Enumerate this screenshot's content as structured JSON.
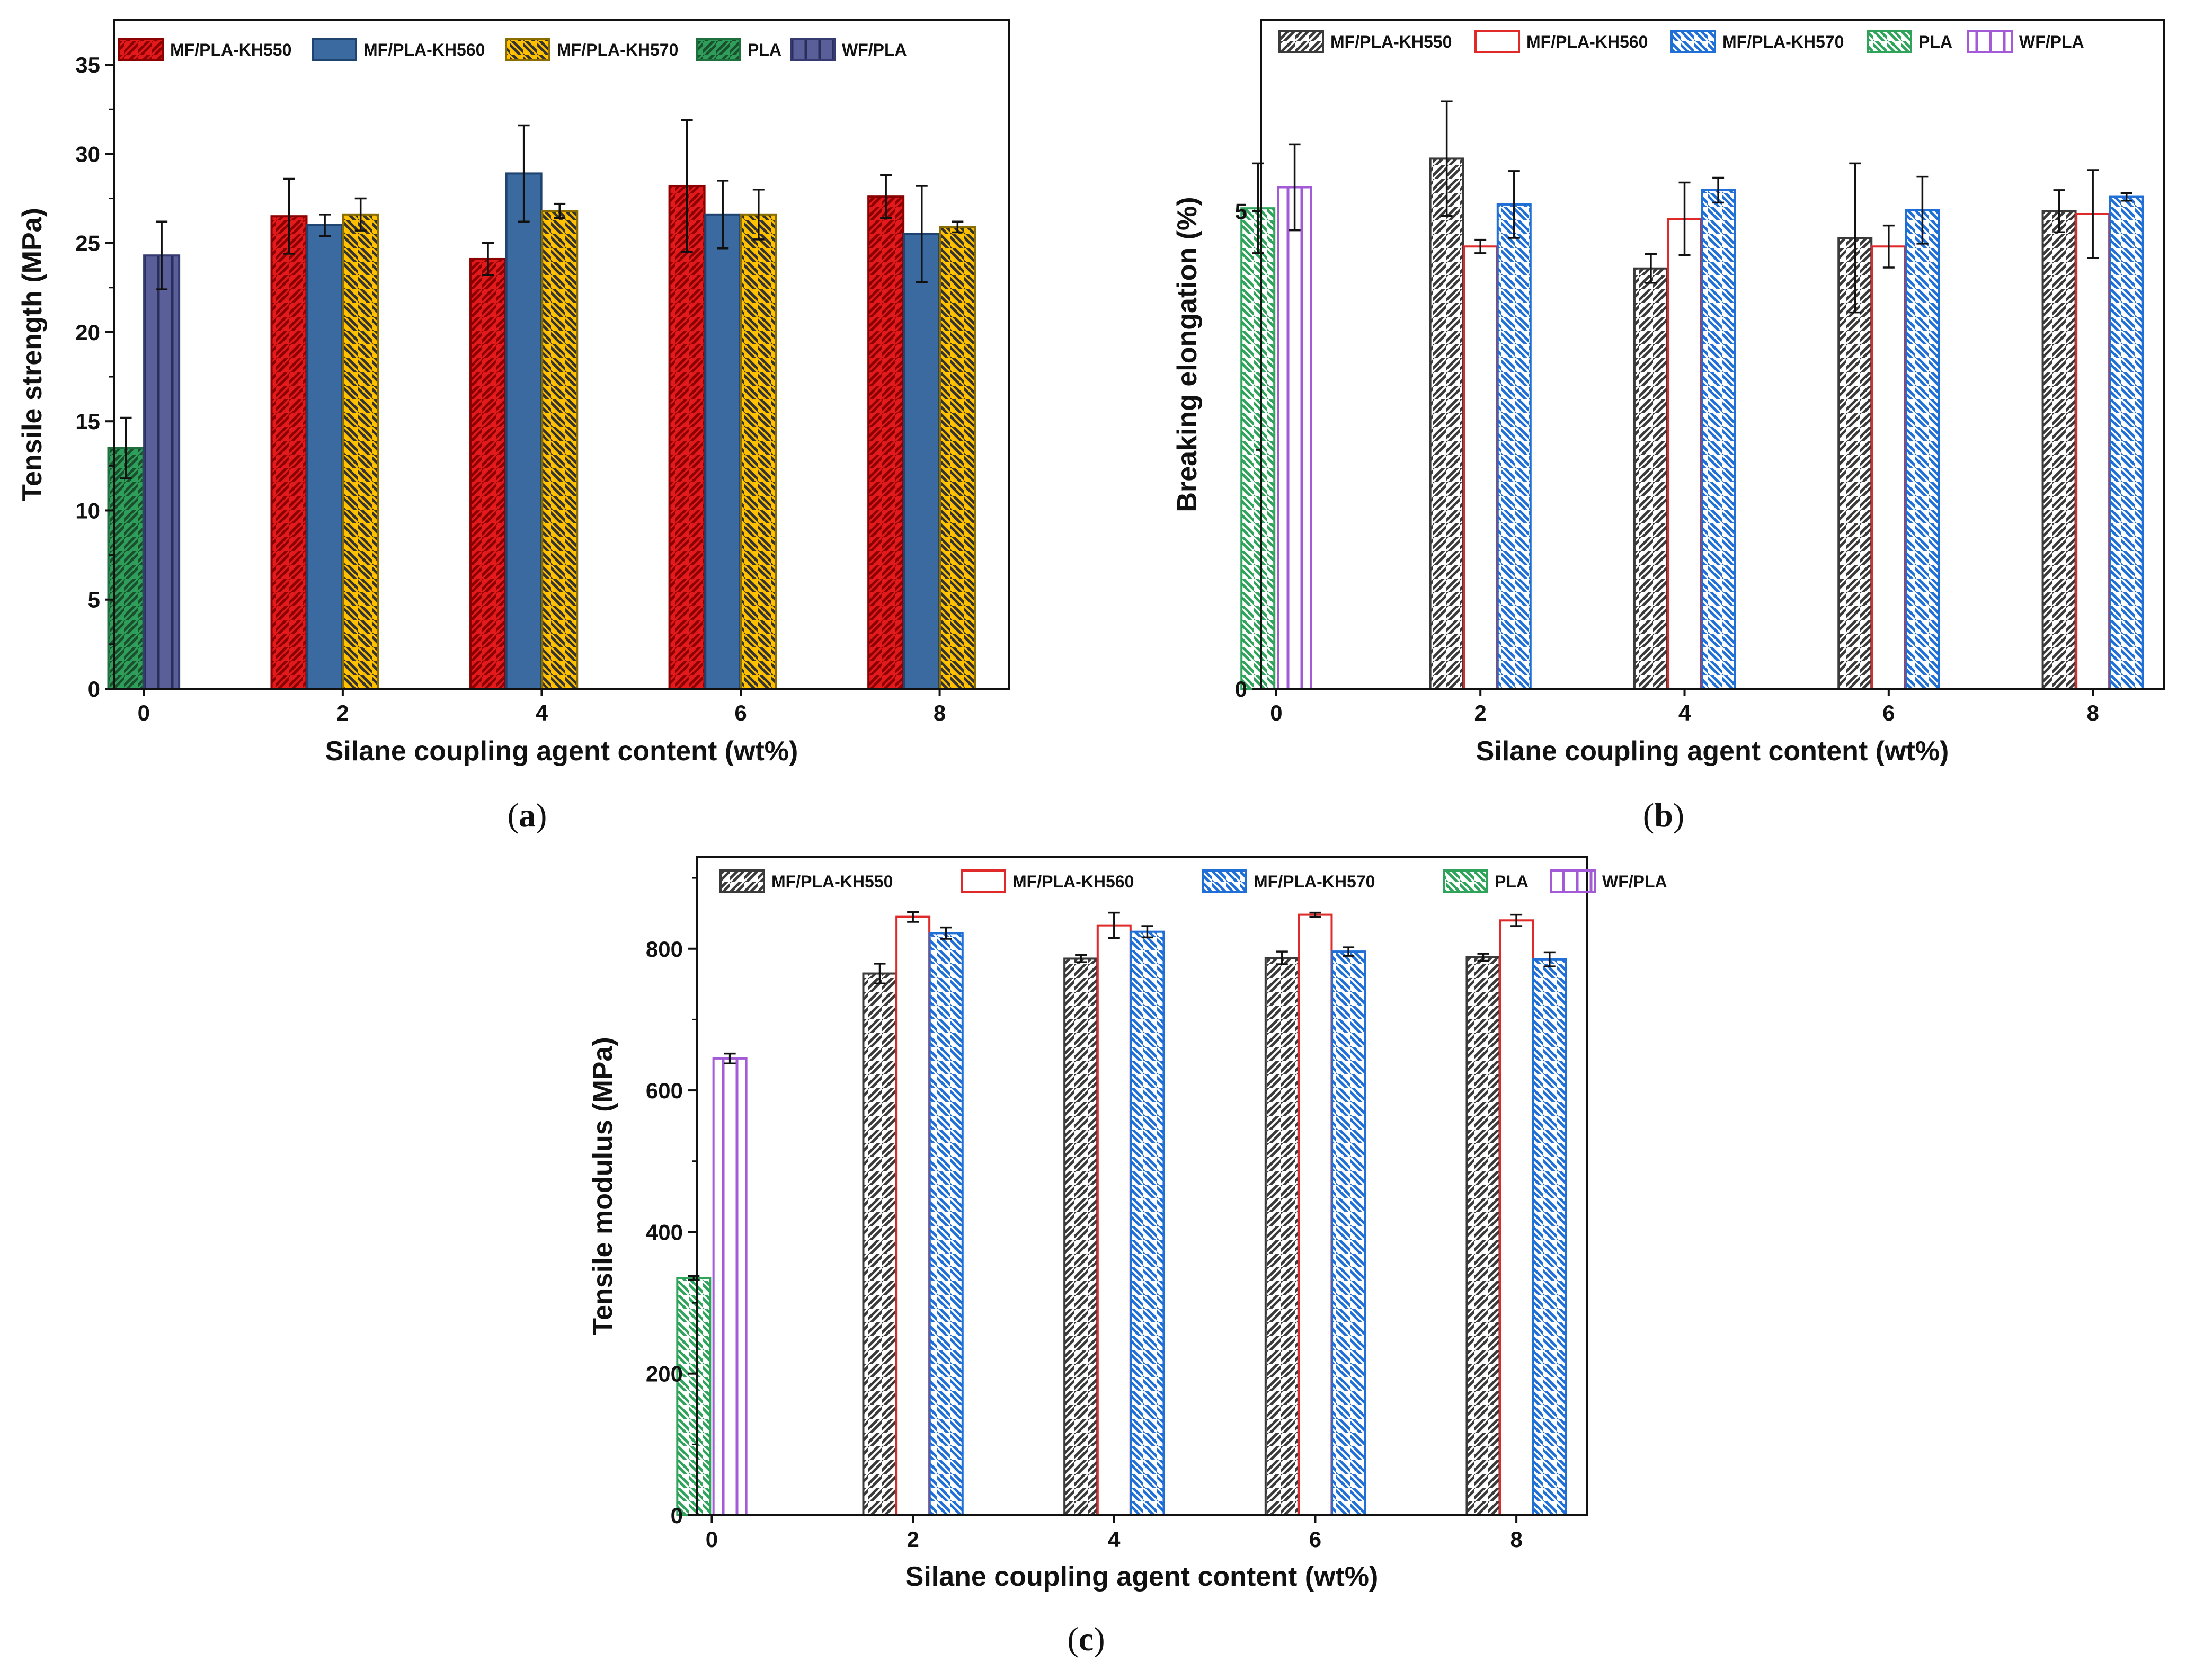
{
  "chart_data": [
    {
      "id": "a",
      "type": "bar",
      "panel_label": "a",
      "xlabel": "Silane coupling agent content (wt%)",
      "ylabel": "Tensile strength (MPa)",
      "ylim": [
        0,
        37.5
      ],
      "yticks": [
        0,
        5,
        10,
        15,
        20,
        25,
        30,
        35
      ],
      "xlim": [
        -0.3,
        8.7
      ],
      "xticks": [
        0,
        2,
        4,
        6,
        8
      ],
      "series": [
        {
          "name": "MF/PLA-KH550",
          "fill": "#e31a1c",
          "stroke": "#8b0000",
          "hatch": "diag-r",
          "hatch_color": "#8b0000",
          "x": [
            2,
            4,
            6,
            8
          ],
          "values": [
            26.5,
            24.1,
            28.2,
            27.6
          ],
          "errors": [
            2.1,
            0.9,
            3.7,
            1.2
          ]
        },
        {
          "name": "MF/PLA-KH560",
          "fill": "#3a6aa0",
          "stroke": "#1f4470",
          "hatch": "none",
          "hatch_color": "#1f4470",
          "x": [
            2,
            4,
            6,
            8
          ],
          "values": [
            26.0,
            28.9,
            26.6,
            25.5
          ],
          "errors": [
            0.6,
            2.7,
            1.9,
            2.7
          ]
        },
        {
          "name": "MF/PLA-KH570",
          "fill": "#ffc000",
          "stroke": "#8a6d00",
          "hatch": "diag-l",
          "hatch_color": "#333333",
          "x": [
            2,
            4,
            6,
            8
          ],
          "values": [
            26.6,
            26.8,
            26.6,
            25.9
          ],
          "errors": [
            0.9,
            0.4,
            1.4,
            0.3
          ]
        },
        {
          "name": "PLA",
          "fill": "#2f9e5a",
          "stroke": "#1f6e3e",
          "hatch": "diag-r",
          "hatch_color": "#1a4f2d",
          "x": [
            0
          ],
          "values": [
            13.5
          ],
          "errors": [
            1.7
          ]
        },
        {
          "name": "WF/PLA",
          "fill": "#5a5f9a",
          "stroke": "#353a70",
          "hatch": "vert",
          "hatch_color": "#2a2e5a",
          "x": [
            0
          ],
          "values": [
            24.3
          ],
          "errors": [
            1.9
          ]
        }
      ]
    },
    {
      "id": "b",
      "type": "bar",
      "panel_label": "b",
      "xlabel": "Silane coupling agent content (wt%)",
      "ylabel": "Breaking elongation (%)",
      "ylim": [
        0,
        7.0
      ],
      "yticks": [
        0,
        5
      ],
      "xlim": [
        -0.15,
        8.7
      ],
      "xticks": [
        0,
        2,
        4,
        6,
        8
      ],
      "series": [
        {
          "name": "MF/PLA-KH550",
          "fill": "none",
          "stroke": "#3a3a3a",
          "hatch": "diag-r",
          "hatch_color": "#3a3a3a",
          "x": [
            2,
            4,
            6,
            8
          ],
          "values": [
            5.55,
            4.4,
            4.72,
            5.0
          ],
          "errors": [
            0.6,
            0.15,
            0.78,
            0.22
          ]
        },
        {
          "name": "MF/PLA-KH560",
          "fill": "none",
          "stroke": "#e02a2a",
          "hatch": "none",
          "hatch_color": "#e02a2a",
          "x": [
            2,
            4,
            6,
            8
          ],
          "values": [
            4.63,
            4.92,
            4.63,
            4.97
          ],
          "errors": [
            0.07,
            0.38,
            0.22,
            0.46
          ]
        },
        {
          "name": "MF/PLA-KH570",
          "fill": "none",
          "stroke": "#1f6fd6",
          "hatch": "diag-l",
          "hatch_color": "#1f6fd6",
          "x": [
            2,
            4,
            6,
            8
          ],
          "values": [
            5.07,
            5.22,
            5.01,
            5.15
          ],
          "errors": [
            0.35,
            0.13,
            0.35,
            0.04
          ]
        },
        {
          "name": "PLA",
          "fill": "none",
          "stroke": "#2fa35a",
          "hatch": "diag-l",
          "hatch_color": "#2fa35a",
          "x": [
            0
          ],
          "values": [
            5.03
          ],
          "errors": [
            0.47
          ]
        },
        {
          "name": "WF/PLA",
          "fill": "none",
          "stroke": "#a25ad6",
          "hatch": "vert",
          "hatch_color": "#a25ad6",
          "x": [
            0
          ],
          "values": [
            5.25
          ],
          "errors": [
            0.45
          ]
        }
      ]
    },
    {
      "id": "c",
      "type": "bar",
      "panel_label": "c",
      "xlabel": "Silane coupling agent content (wt%)",
      "ylabel": "Tensile modulus (MPa)",
      "ylim": [
        0,
        930
      ],
      "yticks": [
        0,
        200,
        400,
        600,
        800
      ],
      "xlim": [
        -0.15,
        8.7
      ],
      "xticks": [
        0,
        2,
        4,
        6,
        8
      ],
      "series": [
        {
          "name": "MF/PLA-KH550",
          "fill": "none",
          "stroke": "#3a3a3a",
          "hatch": "diag-r",
          "hatch_color": "#3a3a3a",
          "x": [
            2,
            4,
            6,
            8
          ],
          "values": [
            765,
            786,
            787,
            788
          ],
          "errors": [
            14,
            5,
            9,
            5
          ]
        },
        {
          "name": "MF/PLA-KH560",
          "fill": "none",
          "stroke": "#e02a2a",
          "hatch": "none",
          "hatch_color": "#e02a2a",
          "x": [
            2,
            4,
            6,
            8
          ],
          "values": [
            845,
            833,
            848,
            840
          ],
          "errors": [
            7,
            18,
            3,
            8
          ]
        },
        {
          "name": "MF/PLA-KH570",
          "fill": "none",
          "stroke": "#1f6fd6",
          "hatch": "diag-l",
          "hatch_color": "#1f6fd6",
          "x": [
            2,
            4,
            6,
            8
          ],
          "values": [
            822,
            824,
            796,
            785
          ],
          "errors": [
            8,
            8,
            6,
            10
          ]
        },
        {
          "name": "PLA",
          "fill": "none",
          "stroke": "#2fa35a",
          "hatch": "diag-l",
          "hatch_color": "#2fa35a",
          "x": [
            0
          ],
          "values": [
            335
          ],
          "errors": [
            3
          ]
        },
        {
          "name": "WF/PLA",
          "fill": "none",
          "stroke": "#a25ad6",
          "hatch": "vert",
          "hatch_color": "#a25ad6",
          "x": [
            0
          ],
          "values": [
            645
          ],
          "errors": [
            7
          ]
        }
      ]
    }
  ]
}
